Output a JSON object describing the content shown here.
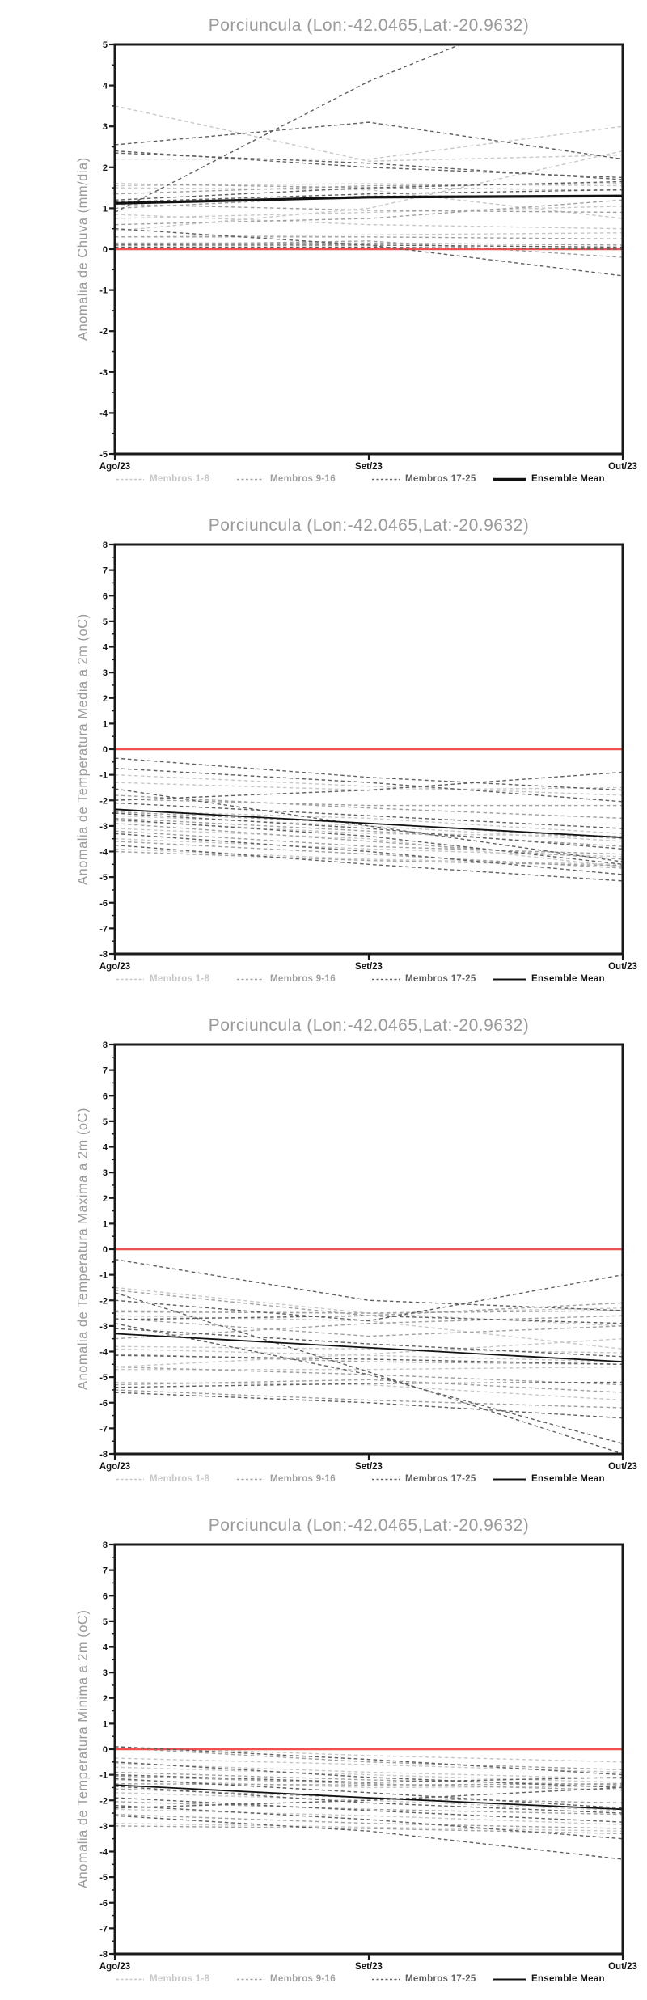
{
  "colors": {
    "zero_line": "#ee5150",
    "axis": "#1a1a1a",
    "title_gray": "#9a9a9a",
    "members_1_8": "#c8c8c8",
    "members_9_16": "#a0a0a0",
    "members_17_25": "#606060",
    "ensemble_mean": "#111111"
  },
  "chart_data": [
    {
      "type": "line",
      "title": "Porciuncula (Lon:-42.0465,Lat:-20.9632)",
      "ylabel": "Anomalia de Chuva (mm/dia)",
      "x_categories": [
        "Ago/23",
        "Set/23",
        "Out/23"
      ],
      "ylim": [
        -5,
        5
      ],
      "ytick_step": 1,
      "grid": false,
      "zero_reference_line": 0,
      "legend_position": "bottom",
      "mean_label": "Ensemble Mean",
      "groups": [
        {
          "name": "Membros 1-8",
          "color": "#c8c8c8",
          "members": [
            [
              3.5,
              2.15,
              2.3
            ],
            [
              2.2,
              2.2,
              3.0
            ],
            [
              1.55,
              1.6,
              1.55
            ],
            [
              1.5,
              1.45,
              0.75
            ],
            [
              0.85,
              0.6,
              0.5
            ],
            [
              0.75,
              0.9,
              1.05
            ],
            [
              0.45,
              1.0,
              2.4
            ],
            [
              0.3,
              0.35,
              0.4
            ]
          ]
        },
        {
          "name": "Membros 9-16",
          "color": "#a0a0a0",
          "members": [
            [
              1.6,
              1.5,
              1.45
            ],
            [
              1.35,
              1.55,
              1.6
            ],
            [
              1.1,
              0.95,
              0.9
            ],
            [
              1.0,
              1.3,
              1.3
            ],
            [
              0.6,
              0.75,
              1.2
            ],
            [
              0.3,
              0.3,
              0.25
            ],
            [
              0.15,
              0.15,
              0.1
            ],
            [
              0.1,
              0.2,
              -0.2
            ]
          ]
        },
        {
          "name": "Membros 17-25",
          "color": "#606060",
          "members": [
            [
              2.55,
              3.1,
              2.2
            ],
            [
              2.4,
              2.0,
              1.75
            ],
            [
              2.35,
              2.1,
              1.7
            ],
            [
              0.9,
              4.1,
              6.6
            ],
            [
              1.2,
              1.5,
              1.65
            ],
            [
              1.15,
              1.35,
              1.45
            ],
            [
              0.1,
              0.1,
              0.05
            ],
            [
              0.05,
              0.05,
              0.0
            ],
            [
              0.5,
              0.1,
              -0.65
            ]
          ]
        }
      ],
      "ensemble_mean": [
        1.12,
        1.27,
        1.3
      ]
    },
    {
      "type": "line",
      "title": "Porciuncula (Lon:-42.0465,Lat:-20.9632)",
      "ylabel": "Anomalia de Temperatura Media a 2m (oC)",
      "x_categories": [
        "Ago/23",
        "Set/23",
        "Out/23"
      ],
      "ylim": [
        -8,
        8
      ],
      "ytick_step": 1,
      "grid": false,
      "zero_reference_line": 0,
      "legend_position": "bottom",
      "mean_label": "Ensemble Mean",
      "groups": [
        {
          "name": "Membros 1-8",
          "color": "#c8c8c8",
          "members": [
            [
              -1.0,
              -1.45,
              -1.8
            ],
            [
              -1.3,
              -1.6,
              -1.5
            ],
            [
              -2.4,
              -2.7,
              -3.3
            ],
            [
              -2.6,
              -3.0,
              -3.6
            ],
            [
              -2.8,
              -3.3,
              -3.4
            ],
            [
              -3.1,
              -3.5,
              -4.6
            ],
            [
              -3.5,
              -3.9,
              -4.2
            ],
            [
              -3.9,
              -4.3,
              -4.5
            ]
          ]
        },
        {
          "name": "Membros 9-16",
          "color": "#a0a0a0",
          "members": [
            [
              -1.8,
              -2.3,
              -2.7
            ],
            [
              -1.95,
              -2.2,
              -2.2
            ],
            [
              -2.45,
              -2.9,
              -3.5
            ],
            [
              -2.7,
              -3.2,
              -3.8
            ],
            [
              -2.9,
              -3.6,
              -4.3
            ],
            [
              -3.2,
              -3.8,
              -4.1
            ],
            [
              -3.6,
              -4.1,
              -4.65
            ],
            [
              -4.0,
              -4.35,
              -4.55
            ]
          ]
        },
        {
          "name": "Membros 17-25",
          "color": "#606060",
          "members": [
            [
              -0.35,
              -1.1,
              -1.6
            ],
            [
              -0.75,
              -1.3,
              -2.05
            ],
            [
              -1.55,
              -3.0,
              -4.4
            ],
            [
              -2.0,
              -1.6,
              -0.9
            ],
            [
              -2.1,
              -2.6,
              -3.1
            ],
            [
              -2.5,
              -3.1,
              -3.9
            ],
            [
              -2.75,
              -3.4,
              -4.5
            ],
            [
              -3.3,
              -4.0,
              -4.9
            ],
            [
              -3.75,
              -4.5,
              -5.15
            ]
          ]
        }
      ],
      "ensemble_mean": [
        -2.35,
        -2.9,
        -3.45
      ]
    },
    {
      "type": "line",
      "title": "Porciuncula (Lon:-42.0465,Lat:-20.9632)",
      "ylabel": "Anomalia de Temperatura Maxima a 2m (oC)",
      "x_categories": [
        "Ago/23",
        "Set/23",
        "Out/23"
      ],
      "ylim": [
        -8,
        8
      ],
      "ytick_step": 1,
      "grid": false,
      "zero_reference_line": 0,
      "legend_position": "bottom",
      "mean_label": "Ensemble Mean",
      "groups": [
        {
          "name": "Membros 1-8",
          "color": "#c8c8c8",
          "members": [
            [
              -1.5,
              -2.5,
              -3.0
            ],
            [
              -2.4,
              -2.5,
              -2.3
            ],
            [
              -2.6,
              -2.8,
              -3.9
            ],
            [
              -3.8,
              -3.9,
              -4.05
            ],
            [
              -3.9,
              -4.15,
              -4.4
            ],
            [
              -4.6,
              -4.1,
              -3.5
            ],
            [
              -4.7,
              -4.7,
              -4.6
            ],
            [
              -5.2,
              -5.3,
              -5.9
            ]
          ]
        },
        {
          "name": "Membros 9-16",
          "color": "#a0a0a0",
          "members": [
            [
              -1.6,
              -2.6,
              -2.1
            ],
            [
              -2.45,
              -2.5,
              -2.4
            ],
            [
              -2.7,
              -3.4,
              -3.0
            ],
            [
              -3.5,
              -2.9,
              -2.6
            ],
            [
              -4.1,
              -4.4,
              -4.5
            ],
            [
              -4.6,
              -4.9,
              -5.3
            ],
            [
              -5.3,
              -5.1,
              -5.6
            ],
            [
              -5.5,
              -5.9,
              -6.2
            ]
          ]
        },
        {
          "name": "Membros 17-25",
          "color": "#606060",
          "members": [
            [
              -0.4,
              -2.0,
              -2.4
            ],
            [
              -1.7,
              -4.8,
              -8.0
            ],
            [
              -2.0,
              -2.8,
              -1.0
            ],
            [
              -2.75,
              -2.6,
              -2.9
            ],
            [
              -3.1,
              -3.7,
              -4.2
            ],
            [
              -4.15,
              -4.3,
              -4.5
            ],
            [
              -5.4,
              -5.25,
              -5.2
            ],
            [
              -5.6,
              -6.0,
              -6.6
            ],
            [
              -2.9,
              -4.9,
              -7.6
            ]
          ]
        }
      ],
      "ensemble_mean": [
        -3.3,
        -3.85,
        -4.4
      ]
    },
    {
      "type": "line",
      "title": "Porciuncula (Lon:-42.0465,Lat:-20.9632)",
      "ylabel": "Anomalia de Temperatura Minima a 2m (oC)",
      "x_categories": [
        "Ago/23",
        "Set/23",
        "Out/23"
      ],
      "ylim": [
        -8,
        8
      ],
      "ytick_step": 1,
      "grid": false,
      "zero_reference_line": 0,
      "legend_position": "bottom",
      "mean_label": "Ensemble Mean",
      "groups": [
        {
          "name": "Membros 1-8",
          "color": "#c8c8c8",
          "members": [
            [
              0.1,
              -0.25,
              -0.5
            ],
            [
              -0.35,
              -0.6,
              -0.9
            ],
            [
              -0.55,
              -0.9,
              -1.15
            ],
            [
              -0.7,
              -1.0,
              -1.3
            ],
            [
              -1.2,
              -1.5,
              -1.45
            ],
            [
              -1.7,
              -2.0,
              -2.4
            ],
            [
              -2.35,
              -2.6,
              -2.95
            ],
            [
              -2.9,
              -3.05,
              -3.2
            ]
          ]
        },
        {
          "name": "Membros 9-16",
          "color": "#a0a0a0",
          "members": [
            [
              0.05,
              -0.5,
              -0.8
            ],
            [
              -0.9,
              -1.2,
              -1.4
            ],
            [
              -1.05,
              -1.35,
              -1.6
            ],
            [
              -1.35,
              -1.4,
              -1.35
            ],
            [
              -1.55,
              -1.9,
              -2.1
            ],
            [
              -2.05,
              -2.35,
              -2.55
            ],
            [
              -2.55,
              -2.9,
              -3.1
            ],
            [
              -3.0,
              -3.1,
              -3.3
            ]
          ]
        },
        {
          "name": "Membros 17-25",
          "color": "#606060",
          "members": [
            [
              0.1,
              -0.4,
              -1.0
            ],
            [
              -0.5,
              -1.1,
              -1.5
            ],
            [
              -1.0,
              -1.3,
              -1.1
            ],
            [
              -1.15,
              -1.7,
              -2.3
            ],
            [
              -1.45,
              -2.1,
              -2.5
            ],
            [
              -1.9,
              -2.4,
              -2.85
            ],
            [
              -2.2,
              -2.75,
              -3.5
            ],
            [
              -2.6,
              -3.2,
              -4.3
            ],
            [
              -2.3,
              -2.0,
              -1.5
            ]
          ]
        }
      ],
      "ensemble_mean": [
        -1.4,
        -1.9,
        -2.35
      ]
    }
  ]
}
